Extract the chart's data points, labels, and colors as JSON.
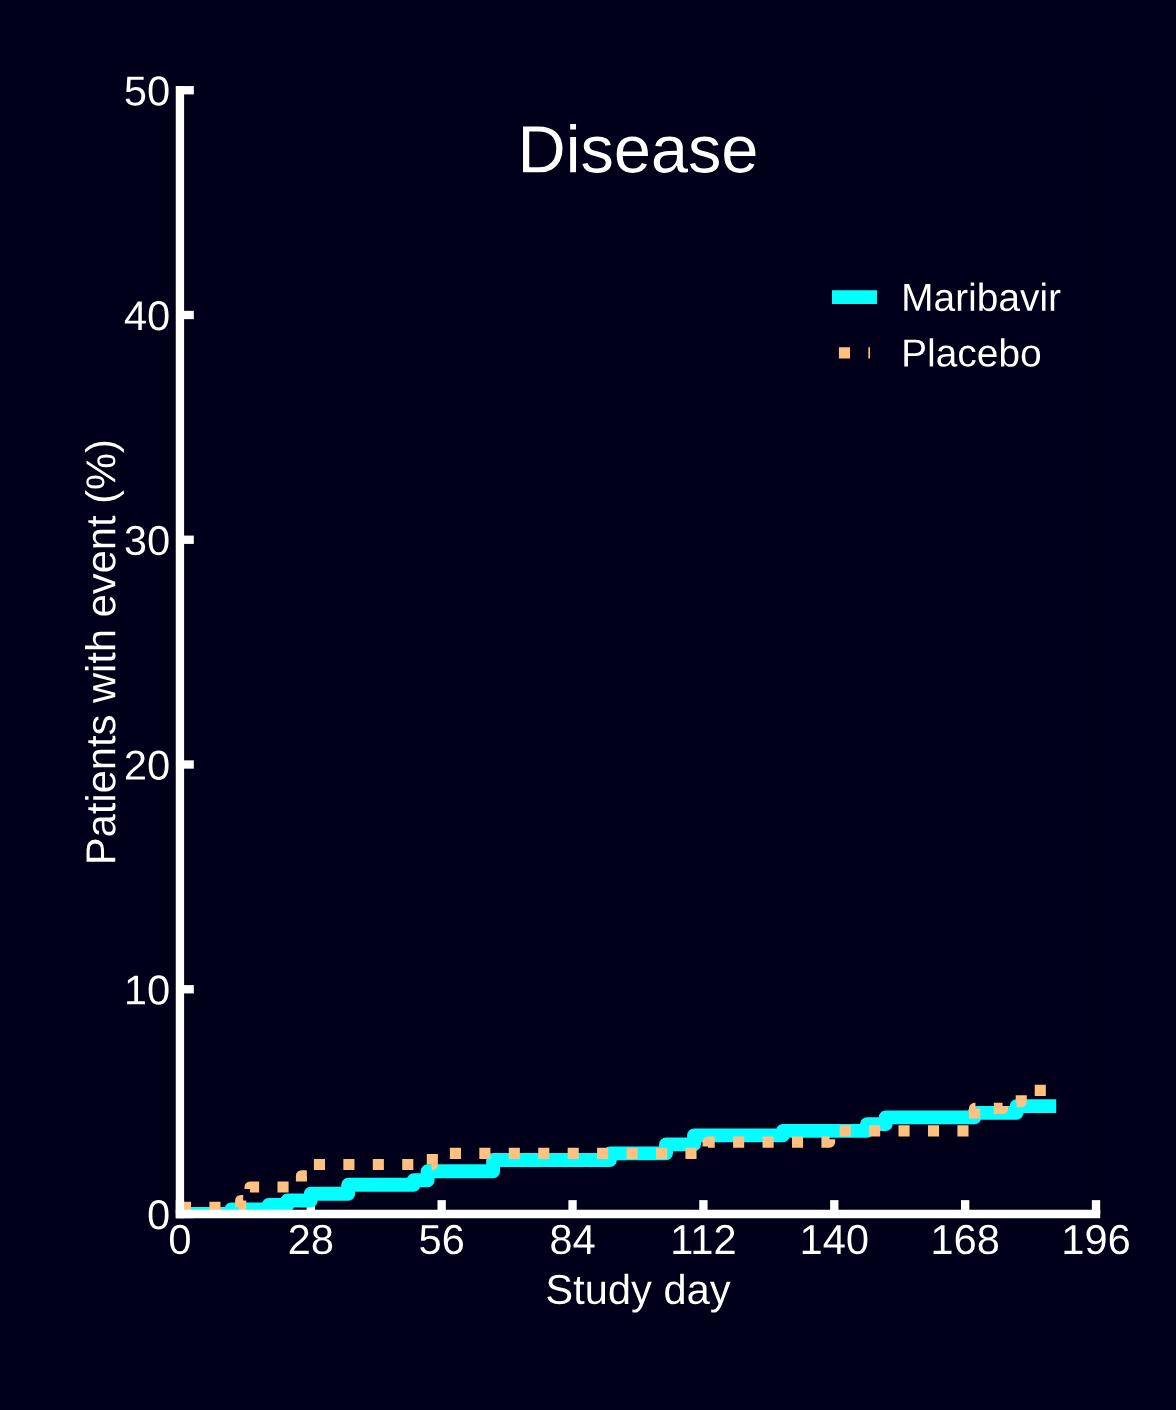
{
  "chart_data": {
    "type": "step",
    "title": "Disease",
    "xlabel": "Study day",
    "ylabel": "Patients with event (%)",
    "series": [
      {
        "name": "Maribavir",
        "color": "#00ffff",
        "line_style": "solid",
        "x": [
          0,
          11,
          19,
          23,
          28,
          36,
          50,
          53,
          67,
          92,
          104,
          110,
          129,
          147,
          151,
          170,
          179,
          186
        ],
        "values": [
          0,
          0.2,
          0.4,
          0.6,
          0.9,
          1.3,
          1.5,
          1.9,
          2.4,
          2.7,
          3.1,
          3.5,
          3.7,
          4.0,
          4.3,
          4.5,
          4.8,
          4.8
        ]
      },
      {
        "name": "Placebo",
        "color": "#ffc080",
        "line_style": "dotted",
        "x": [
          0,
          13,
          15,
          26,
          28,
          54,
          113,
          139,
          170,
          176,
          180,
          186
        ],
        "values": [
          0.3,
          0.6,
          1.2,
          1.7,
          2.2,
          2.7,
          3.2,
          3.7,
          4.7,
          5.0,
          5.5,
          5.5
        ]
      }
    ],
    "xlim": [
      0,
      196
    ],
    "xticks": [
      0,
      28,
      56,
      84,
      112,
      140,
      168,
      196
    ],
    "ylim": [
      0,
      50
    ],
    "yticks": [
      0,
      10,
      20,
      30,
      40,
      50
    ],
    "grid": false,
    "legend": "top right",
    "marker": "none"
  }
}
